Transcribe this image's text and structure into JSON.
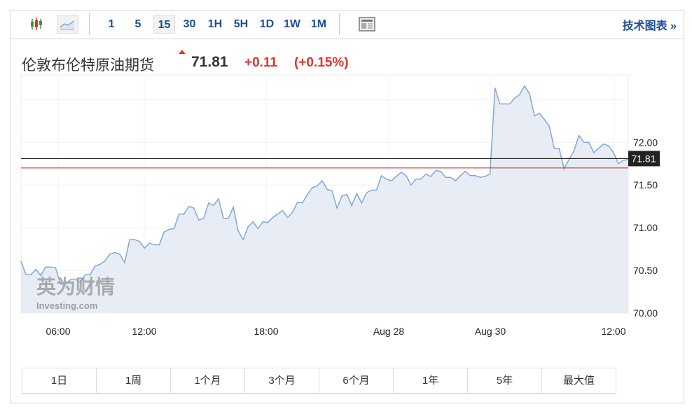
{
  "toolbar": {
    "chart_type_icons": [
      "candlestick-icon",
      "line-chart-icon"
    ],
    "intervals": [
      "1",
      "5",
      "15",
      "30",
      "1H",
      "5H",
      "1D",
      "1W",
      "1M"
    ],
    "active_interval": "15",
    "technical_label": "技术图表 »"
  },
  "header": {
    "title": "伦敦布伦特原油期货",
    "price": "71.81",
    "change": "+0.11",
    "change_pct": "(+0.15%)",
    "direction": "up",
    "up_color": "#e5342a"
  },
  "watermark": {
    "cn": "英为财情",
    "en": "Investing.com"
  },
  "chart_data": {
    "type": "area",
    "ylim": [
      70.0,
      72.79
    ],
    "yticks": [
      "72.00",
      "71.50",
      "71.00",
      "70.50",
      "70.00"
    ],
    "xtick_labels": [
      "06:00",
      "12:00",
      "18:00",
      "Aug 28",
      "Aug 30",
      "12:00"
    ],
    "grid": true,
    "line_color": "#7fa8d6",
    "fill_color": "#e8edf5",
    "current_price": {
      "value": 71.81,
      "label": "71.81",
      "color": "#222222"
    },
    "reference_line": {
      "value": 71.7,
      "color": "#d9352a"
    },
    "values": [
      70.61,
      70.45,
      70.45,
      70.51,
      70.44,
      70.54,
      70.54,
      70.53,
      70.34,
      70.34,
      70.39,
      70.4,
      70.36,
      70.45,
      70.45,
      70.55,
      70.57,
      70.61,
      70.69,
      70.71,
      70.69,
      70.59,
      70.86,
      70.86,
      70.84,
      70.76,
      70.82,
      70.8,
      70.8,
      70.95,
      70.98,
      70.99,
      71.16,
      71.16,
      71.25,
      71.23,
      71.09,
      71.11,
      71.29,
      71.26,
      71.34,
      71.11,
      71.11,
      71.24,
      70.96,
      70.86,
      71.01,
      71.07,
      70.99,
      71.07,
      71.06,
      71.12,
      71.16,
      71.2,
      71.12,
      71.18,
      71.3,
      71.29,
      71.39,
      71.47,
      71.49,
      71.55,
      71.45,
      71.43,
      71.23,
      71.37,
      71.39,
      71.26,
      71.4,
      71.29,
      71.41,
      71.44,
      71.44,
      71.61,
      71.57,
      71.55,
      71.6,
      71.65,
      71.61,
      71.5,
      71.57,
      71.57,
      71.63,
      71.6,
      71.67,
      71.66,
      71.59,
      71.59,
      71.55,
      71.61,
      71.66,
      71.61,
      71.61,
      71.59,
      71.6,
      71.63,
      72.64,
      72.45,
      72.45,
      72.45,
      72.52,
      72.56,
      72.66,
      72.57,
      72.31,
      72.34,
      72.27,
      72.19,
      71.93,
      71.93,
      71.69,
      71.8,
      71.9,
      72.08,
      72.0,
      72.0,
      71.88,
      71.93,
      71.98,
      71.96,
      71.88,
      71.75,
      71.79,
      71.8
    ]
  },
  "ranges": [
    "1日",
    "1周",
    "1个月",
    "3个月",
    "6个月",
    "1年",
    "5年",
    "最大值"
  ]
}
